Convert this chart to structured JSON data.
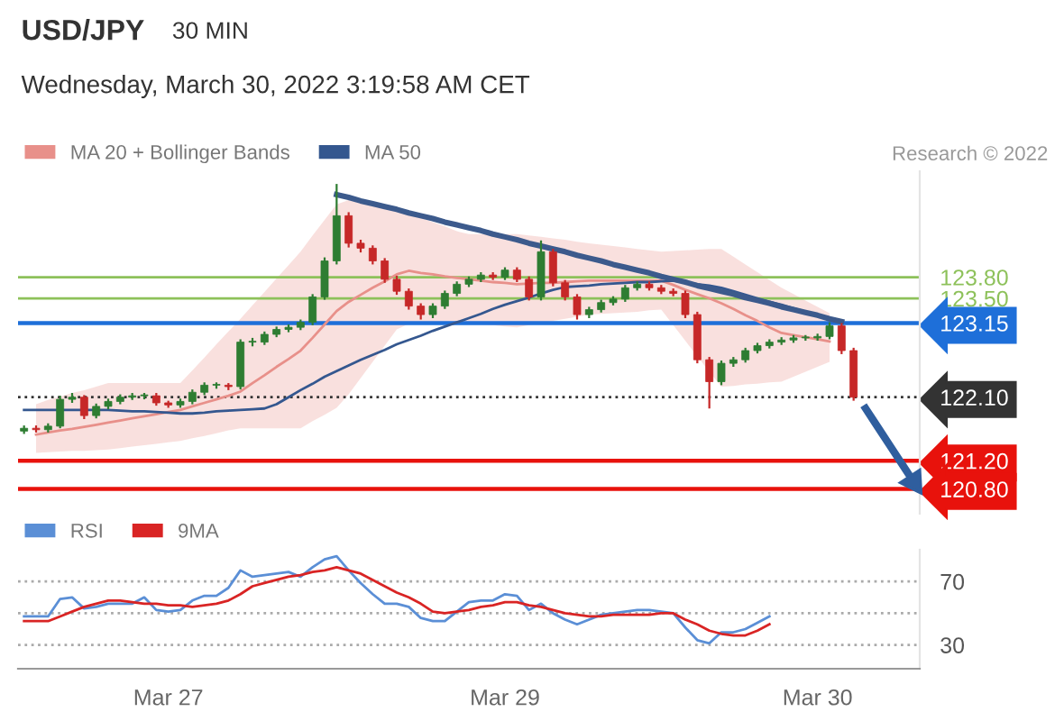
{
  "chart_data": [
    {
      "type": "candlestick",
      "title": "USD/JPY",
      "subtitle": "30 MIN",
      "annotations": [
        "Wednesday, March 30, 2022 3:19:58 AM CET",
        "Research © 2022"
      ],
      "categories": [
        null,
        null,
        null,
        null,
        null,
        null,
        null,
        null,
        null,
        null,
        null,
        null,
        "Mar 27",
        null,
        null,
        null,
        null,
        null,
        null,
        null,
        null,
        null,
        null,
        null,
        null,
        null,
        null,
        null,
        null,
        null,
        null,
        null,
        null,
        null,
        null,
        null,
        null,
        null,
        null,
        null,
        "Mar 29",
        null,
        null,
        null,
        null,
        null,
        null,
        null,
        null,
        null,
        null,
        null,
        null,
        null,
        null,
        null,
        null,
        null,
        null,
        null,
        null,
        null,
        null,
        null,
        null,
        null,
        "Mar 30",
        null,
        null,
        null,
        null,
        null,
        null,
        null,
        null
      ],
      "ohlc": [
        [
          121.62,
          121.7,
          121.58,
          121.66
        ],
        [
          121.66,
          121.7,
          121.6,
          121.64
        ],
        [
          121.64,
          121.73,
          121.6,
          121.69
        ],
        [
          121.69,
          122.12,
          121.66,
          122.07
        ],
        [
          122.07,
          122.16,
          122.02,
          122.1
        ],
        [
          122.1,
          122.13,
          121.79,
          121.84
        ],
        [
          121.84,
          122.01,
          121.8,
          121.97
        ],
        [
          121.97,
          122.08,
          121.93,
          122.04
        ],
        [
          122.04,
          122.14,
          122.0,
          122.1
        ],
        [
          122.1,
          122.16,
          122.06,
          122.12
        ],
        [
          122.12,
          122.16,
          122.07,
          122.12
        ],
        [
          122.12,
          122.16,
          121.98,
          122.02
        ],
        [
          122.02,
          122.05,
          121.95,
          121.99
        ],
        [
          121.99,
          122.08,
          121.95,
          122.04
        ],
        [
          122.04,
          122.21,
          122.0,
          122.17
        ],
        [
          122.17,
          122.31,
          122.13,
          122.27
        ],
        [
          122.27,
          122.31,
          122.22,
          122.27
        ],
        [
          122.27,
          122.3,
          122.2,
          122.25
        ],
        [
          122.25,
          122.92,
          122.21,
          122.88
        ],
        [
          122.88,
          122.94,
          122.82,
          122.88
        ],
        [
          122.88,
          123.03,
          122.84,
          122.99
        ],
        [
          122.99,
          123.1,
          122.95,
          123.06
        ],
        [
          123.06,
          123.13,
          123.02,
          123.09
        ],
        [
          123.09,
          123.2,
          123.05,
          123.16
        ],
        [
          123.16,
          123.56,
          123.12,
          123.52
        ],
        [
          123.52,
          124.08,
          123.48,
          124.03
        ],
        [
          124.03,
          125.12,
          123.98,
          124.67
        ],
        [
          124.67,
          124.72,
          124.22,
          124.28
        ],
        [
          124.28,
          124.33,
          124.15,
          124.21
        ],
        [
          124.21,
          124.25,
          123.98,
          124.03
        ],
        [
          124.03,
          124.07,
          123.72,
          123.77
        ],
        [
          123.77,
          123.82,
          123.55,
          123.6
        ],
        [
          123.6,
          123.64,
          123.34,
          123.39
        ],
        [
          123.39,
          123.43,
          123.2,
          123.27
        ],
        [
          123.27,
          123.43,
          123.22,
          123.39
        ],
        [
          123.39,
          123.61,
          123.35,
          123.57
        ],
        [
          123.57,
          123.74,
          123.53,
          123.7
        ],
        [
          123.7,
          123.81,
          123.66,
          123.77
        ],
        [
          123.77,
          123.87,
          123.73,
          123.83
        ],
        [
          123.83,
          123.87,
          123.76,
          123.8
        ],
        [
          123.8,
          123.94,
          123.76,
          123.9
        ],
        [
          123.9,
          123.94,
          123.73,
          123.77
        ],
        [
          123.77,
          123.81,
          123.47,
          123.52
        ],
        [
          123.52,
          124.32,
          123.47,
          124.16
        ],
        [
          124.16,
          124.2,
          123.67,
          123.72
        ],
        [
          123.72,
          123.76,
          123.47,
          123.52
        ],
        [
          123.52,
          123.56,
          123.2,
          123.27
        ],
        [
          123.27,
          123.38,
          123.22,
          123.34
        ],
        [
          123.34,
          123.48,
          123.3,
          123.44
        ],
        [
          123.44,
          123.53,
          123.4,
          123.49
        ],
        [
          123.49,
          123.69,
          123.45,
          123.65
        ],
        [
          123.65,
          123.74,
          123.61,
          123.7
        ],
        [
          123.7,
          123.74,
          123.61,
          123.65
        ],
        [
          123.65,
          123.69,
          123.56,
          123.6
        ],
        [
          123.6,
          123.64,
          123.53,
          123.57
        ],
        [
          123.57,
          123.61,
          123.22,
          123.27
        ],
        [
          123.27,
          123.31,
          122.58,
          122.63
        ],
        [
          122.63,
          122.67,
          121.94,
          122.32
        ],
        [
          122.32,
          122.62,
          122.27,
          122.58
        ],
        [
          122.58,
          122.67,
          122.53,
          122.63
        ],
        [
          122.63,
          122.8,
          122.59,
          122.76
        ],
        [
          122.76,
          122.87,
          122.72,
          122.83
        ],
        [
          122.83,
          122.92,
          122.79,
          122.88
        ],
        [
          122.88,
          122.95,
          122.84,
          122.91
        ],
        [
          122.91,
          122.98,
          122.87,
          122.94
        ],
        [
          122.94,
          122.98,
          122.9,
          122.94
        ],
        [
          122.94,
          123.0,
          122.9,
          122.96
        ],
        [
          122.96,
          123.16,
          122.92,
          123.11
        ],
        [
          123.11,
          123.15,
          122.71,
          122.76
        ],
        [
          122.76,
          122.8,
          122.05,
          122.1
        ],
        null,
        null,
        null,
        null,
        null
      ],
      "series": [
        {
          "name": "MA 20 + Bollinger Bands",
          "type": "line",
          "color": "#e8908a",
          "values": [
            null,
            121.57,
            121.6,
            121.63,
            121.65,
            121.68,
            121.71,
            121.74,
            121.77,
            121.8,
            121.83,
            121.86,
            121.89,
            121.92,
            121.97,
            122.02,
            122.07,
            122.12,
            122.18,
            122.3,
            122.41,
            122.53,
            122.64,
            122.76,
            122.94,
            123.13,
            123.32,
            123.45,
            123.55,
            123.65,
            123.74,
            123.84,
            123.89,
            123.86,
            123.84,
            123.81,
            123.79,
            123.77,
            123.75,
            123.73,
            123.72,
            123.7,
            123.71,
            123.72,
            123.72,
            123.73,
            123.74,
            123.75,
            123.75,
            123.75,
            123.75,
            123.75,
            123.75,
            123.75,
            123.69,
            123.62,
            123.56,
            123.5,
            123.43,
            123.35,
            123.26,
            123.18,
            123.09,
            123.01,
            122.98,
            122.95,
            122.92,
            122.89,
            null,
            null,
            null,
            null,
            null,
            null,
            null
          ],
          "upper": [
            null,
            122.0,
            122.06,
            122.11,
            122.16,
            122.2,
            122.25,
            122.3,
            122.3,
            122.3,
            122.3,
            122.3,
            122.3,
            122.3,
            122.48,
            122.66,
            122.85,
            123.03,
            123.21,
            123.4,
            123.59,
            123.78,
            123.97,
            124.16,
            124.39,
            124.61,
            124.83,
            124.89,
            124.85,
            124.81,
            124.78,
            124.74,
            124.7,
            124.64,
            124.58,
            124.52,
            124.45,
            124.41,
            124.41,
            124.41,
            124.41,
            124.41,
            124.39,
            124.37,
            124.35,
            124.33,
            124.3,
            124.28,
            124.26,
            124.24,
            124.22,
            124.2,
            124.18,
            124.16,
            124.17,
            124.18,
            124.19,
            124.2,
            124.2,
            124.09,
            123.98,
            123.87,
            123.76,
            123.65,
            123.56,
            123.47,
            123.38,
            123.29,
            null,
            null,
            null,
            null,
            null,
            null,
            null
          ],
          "lower": [
            null,
            121.31,
            121.32,
            121.33,
            121.34,
            121.34,
            121.35,
            121.36,
            121.38,
            121.4,
            121.42,
            121.44,
            121.46,
            121.48,
            121.52,
            121.55,
            121.59,
            121.63,
            121.66,
            121.66,
            121.66,
            121.66,
            121.66,
            121.66,
            121.76,
            121.85,
            121.95,
            122.14,
            122.37,
            122.6,
            122.83,
            123.06,
            123.14,
            123.14,
            123.14,
            123.14,
            123.14,
            123.14,
            123.13,
            123.12,
            123.1,
            123.09,
            123.12,
            123.15,
            123.18,
            123.21,
            123.24,
            123.27,
            123.28,
            123.29,
            123.3,
            123.31,
            123.33,
            123.34,
            123.12,
            122.9,
            122.68,
            122.46,
            122.25,
            122.26,
            122.28,
            122.29,
            122.31,
            122.32,
            122.39,
            122.46,
            122.53,
            122.6,
            null,
            null,
            null,
            null,
            null,
            null,
            null
          ]
        },
        {
          "name": "MA 50",
          "type": "line",
          "color": "#34578f",
          "values": [
            121.92,
            121.92,
            121.92,
            121.92,
            121.92,
            121.92,
            121.92,
            121.92,
            121.91,
            121.9,
            121.9,
            121.89,
            121.88,
            121.87,
            121.87,
            121.88,
            121.9,
            121.91,
            121.92,
            121.93,
            121.94,
            122.0,
            122.1,
            122.2,
            122.29,
            122.39,
            122.47,
            122.55,
            122.63,
            122.7,
            122.77,
            122.85,
            122.91,
            122.97,
            123.04,
            123.1,
            123.16,
            123.22,
            123.28,
            123.35,
            123.41,
            123.46,
            123.51,
            123.57,
            123.62,
            123.66,
            123.67,
            123.68,
            123.7,
            123.71,
            123.72,
            123.73,
            123.73,
            123.74,
            123.75,
            123.73,
            123.7,
            123.68,
            123.65,
            123.6,
            123.55,
            123.5,
            123.45,
            123.41,
            123.36,
            123.31,
            123.26,
            123.21,
            null,
            null,
            null,
            null,
            null,
            null,
            null
          ]
        },
        {
          "type": "line",
          "color": "#3c5a8c",
          "values": [
            null,
            null,
            null,
            null,
            null,
            null,
            null,
            null,
            null,
            null,
            null,
            null,
            null,
            null,
            null,
            null,
            null,
            null,
            null,
            null,
            null,
            null,
            null,
            null,
            null,
            null,
            124.97,
            124.93,
            124.88,
            124.84,
            124.8,
            124.76,
            124.71,
            124.67,
            124.63,
            124.58,
            124.54,
            124.5,
            124.46,
            124.41,
            124.37,
            124.33,
            124.28,
            124.24,
            124.2,
            124.16,
            124.11,
            124.07,
            124.03,
            123.98,
            123.94,
            123.9,
            123.86,
            123.81,
            123.77,
            123.73,
            123.68,
            123.64,
            123.6,
            123.56,
            123.51,
            123.47,
            123.43,
            123.38,
            123.34,
            123.3,
            123.26,
            123.21,
            123.17,
            null,
            null,
            null,
            null,
            null,
            null
          ]
        },
        {
          "type": "line",
          "color": "#2f5e9e",
          "values": [
            null,
            null,
            null,
            null,
            null,
            null,
            null,
            null,
            null,
            null,
            null,
            null,
            null,
            null,
            null,
            null,
            null,
            null,
            null,
            null,
            null,
            null,
            null,
            null,
            null,
            null,
            null,
            null,
            null,
            null,
            null,
            null,
            null,
            null,
            null,
            null,
            null,
            null,
            null,
            null,
            null,
            null,
            null,
            null,
            null,
            null,
            null,
            null,
            null,
            null,
            null,
            null,
            null,
            null,
            null,
            null,
            null,
            null,
            null,
            null,
            null,
            null,
            null,
            null,
            null,
            null,
            null,
            null,
            null,
            null,
            121.94,
            121.68,
            121.42,
            121.16,
            120.9
          ]
        }
      ],
      "ref_lines": [
        {
          "axis": "y",
          "value": 123.8,
          "color": "#8dc15a"
        },
        {
          "axis": "y",
          "value": 123.5,
          "color": "#8dc15a"
        },
        {
          "axis": "y",
          "value": 123.15,
          "color": "#1e6fd9"
        },
        {
          "axis": "y",
          "value": 122.1,
          "color": "#333333",
          "line_style": "dotted"
        },
        {
          "axis": "y",
          "value": 121.2,
          "color": "#e8120c"
        },
        {
          "axis": "y",
          "value": 120.8,
          "color": "#e8120c"
        }
      ],
      "ylim": [
        120.45,
        125.3
      ],
      "yticks": [
        {
          "value": 123.8,
          "label": "123.80"
        },
        {
          "value": 123.5,
          "label": "123.50"
        },
        {
          "value": 123.15,
          "label": "123.15"
        },
        {
          "value": 122.1,
          "label": "122.10"
        },
        {
          "value": 121.2,
          "label": "121.20"
        },
        {
          "value": 120.8,
          "label": "120.80"
        }
      ],
      "tick_labels": "y",
      "legend": "top left"
    },
    {
      "type": "line",
      "series": [
        {
          "name": "RSI",
          "color": "#5b8fd6",
          "values": [
            48,
            48,
            48,
            59,
            60,
            53,
            54,
            56,
            56,
            56,
            60,
            52,
            51,
            52,
            58,
            61,
            61,
            66,
            77,
            73,
            74,
            75,
            76,
            73,
            79,
            84,
            86,
            77,
            69,
            62,
            56,
            56,
            54,
            47,
            45,
            45,
            51,
            57,
            58,
            58,
            62,
            61,
            52,
            56,
            50,
            46,
            43,
            46,
            49,
            50,
            51,
            52,
            52,
            51,
            50,
            41,
            33,
            31,
            38,
            38,
            40,
            44,
            48,
            null,
            null,
            null,
            null,
            null,
            null,
            null,
            null,
            null,
            null,
            null,
            null
          ]
        },
        {
          "name": "9MA",
          "color": "#d92424",
          "values": [
            45,
            45,
            45,
            48,
            51,
            54,
            56,
            58,
            58,
            57,
            56,
            56,
            55,
            55,
            54,
            55,
            56,
            58,
            62,
            67,
            69,
            71,
            73,
            74,
            76,
            77,
            79,
            77,
            75,
            71,
            67,
            63,
            60,
            56,
            51,
            50,
            51,
            52,
            54,
            55,
            57,
            57,
            55,
            54,
            52,
            50,
            49,
            48,
            48,
            49,
            49,
            49,
            49,
            50,
            50,
            46,
            43,
            39,
            37,
            36,
            36,
            39,
            43,
            null,
            null,
            null,
            null,
            null,
            null,
            null,
            null,
            null,
            null,
            null,
            null
          ]
        }
      ],
      "ylim": [
        15,
        90
      ],
      "yticks": [
        70,
        {
          "value": 50,
          "label": null
        },
        30
      ],
      "grid": "y",
      "legend": "top left"
    }
  ]
}
